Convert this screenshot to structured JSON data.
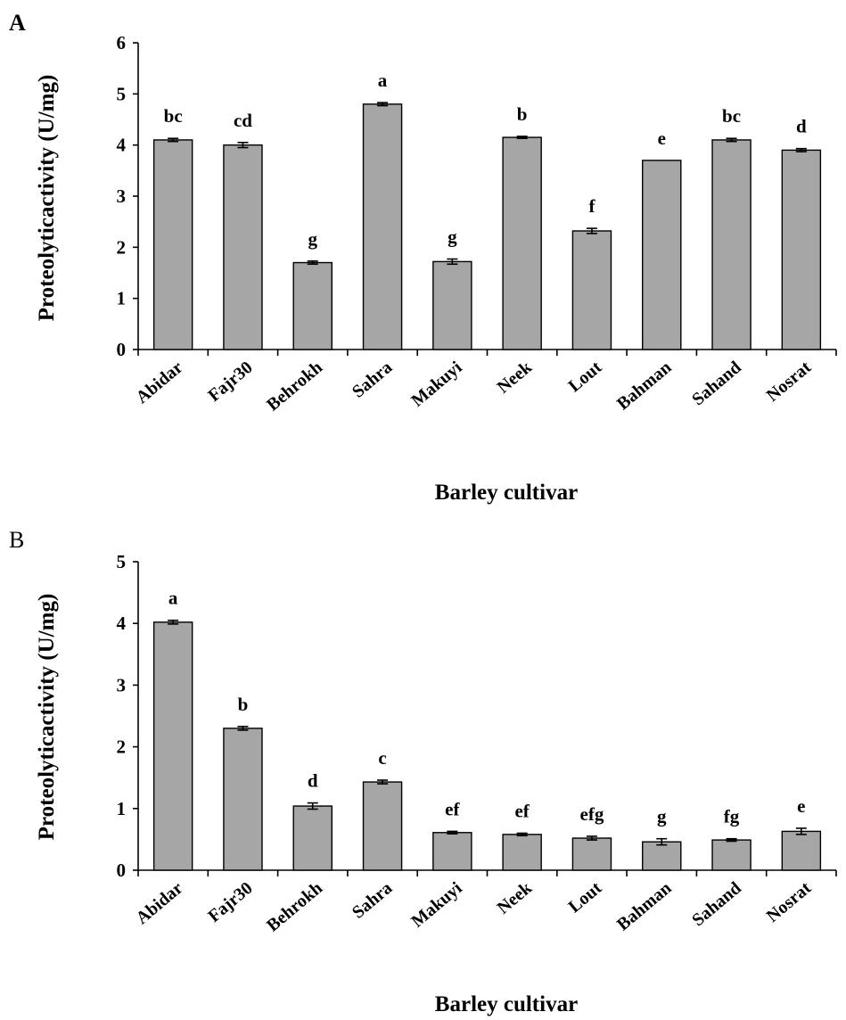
{
  "chart_data": [
    {
      "type": "bar",
      "panel": "A",
      "categories": [
        "Abidar",
        "Fajr30",
        "Behrokh",
        "Sahra",
        "Makuyi",
        "Neek",
        "Lout",
        "Bahman",
        "Sahand",
        "Nosrat"
      ],
      "values": [
        4.1,
        4.0,
        1.7,
        4.8,
        1.72,
        4.15,
        2.32,
        3.7,
        4.1,
        3.9
      ],
      "errors": [
        0.03,
        0.05,
        0.03,
        0.03,
        0.05,
        0.02,
        0.05,
        0.0,
        0.03,
        0.03
      ],
      "significance": [
        "bc",
        "cd",
        "g",
        "a",
        "g",
        "b",
        "f",
        "e",
        "bc",
        "d"
      ],
      "xlabel": "Barley cultivar",
      "ylabel": "Proteolyticactivity (U/mg)",
      "ylim": [
        0,
        6
      ],
      "yticks": [
        "0",
        "1",
        "2",
        "3",
        "4",
        "5",
        "6"
      ],
      "bar_color": "#a6a6a6",
      "grid": false
    },
    {
      "type": "bar",
      "panel": "B",
      "categories": [
        "Abidar",
        "Fajr30",
        "Behrokh",
        "Sahra",
        "Makuyi",
        "Neek",
        "Lout",
        "Bahman",
        "Sahand",
        "Nosrat"
      ],
      "values": [
        4.02,
        2.3,
        1.04,
        1.43,
        0.61,
        0.58,
        0.52,
        0.46,
        0.49,
        0.63
      ],
      "errors": [
        0.03,
        0.03,
        0.05,
        0.03,
        0.02,
        0.02,
        0.03,
        0.05,
        0.02,
        0.05
      ],
      "significance": [
        "a",
        "b",
        "d",
        "c",
        "ef",
        "ef",
        "efg",
        "g",
        "fg",
        "e"
      ],
      "xlabel": "Barley cultivar",
      "ylabel": "Proteolyticactivity (U/mg)",
      "ylim": [
        0,
        5
      ],
      "yticks": [
        "0",
        "1",
        "2",
        "3",
        "4",
        "5"
      ],
      "bar_color": "#a6a6a6",
      "grid": false
    }
  ]
}
